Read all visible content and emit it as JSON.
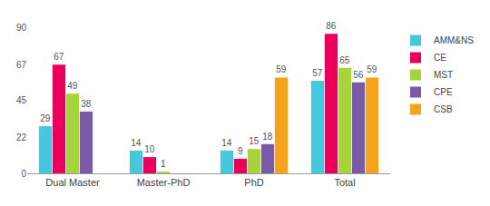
{
  "chart_data": {
    "type": "bar",
    "categories": [
      "Dual Master",
      "Master-PhD",
      "PhD",
      "Total"
    ],
    "series": [
      {
        "name": "AMM&NS",
        "color": "#45c8dc",
        "values": [
          29,
          14,
          14,
          57
        ]
      },
      {
        "name": "CE",
        "color": "#e8005a",
        "values": [
          67,
          10,
          9,
          86
        ]
      },
      {
        "name": "MST",
        "color": "#a6d43a",
        "values": [
          49,
          1,
          15,
          65
        ]
      },
      {
        "name": "CPE",
        "color": "#7a5aa6",
        "values": [
          38,
          null,
          18,
          56
        ]
      },
      {
        "name": "CSB",
        "color": "#f7a21b",
        "values": [
          null,
          null,
          59,
          59
        ]
      }
    ],
    "ylim": [
      0,
      90
    ],
    "yticks": [
      0,
      22,
      45,
      67,
      90
    ],
    "grid": false,
    "legend": "right",
    "data_labels": true
  }
}
